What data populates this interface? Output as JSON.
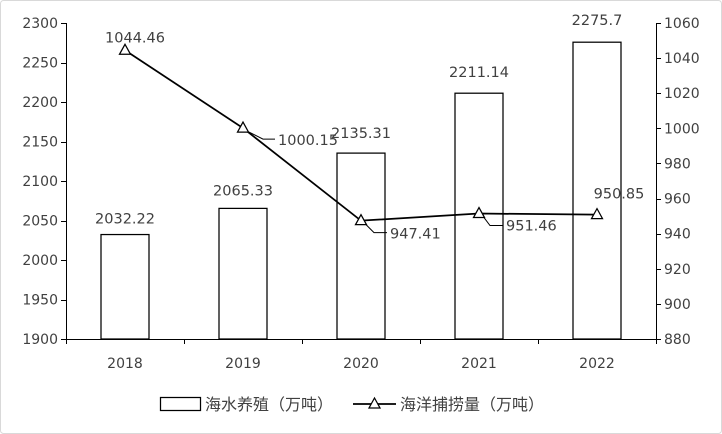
{
  "chart_data": {
    "type": "bar",
    "categories": [
      "2018",
      "2019",
      "2020",
      "2021",
      "2022"
    ],
    "series": [
      {
        "name": "海水养殖（万吨）",
        "type": "bar",
        "axis": "left",
        "values": [
          2032.22,
          2065.33,
          2135.31,
          2211.14,
          2275.7
        ],
        "fill": "#ffffff",
        "stroke": "#000000"
      },
      {
        "name": "海洋捕捞量（万吨）",
        "type": "line",
        "axis": "right",
        "marker": "open-triangle",
        "values": [
          1044.46,
          1000.15,
          947.41,
          951.46,
          950.85
        ],
        "stroke": "#000000"
      }
    ],
    "ylim": [
      1900,
      2300
    ],
    "yticks": [
      1900,
      1950,
      2000,
      2050,
      2100,
      2150,
      2200,
      2250,
      2300
    ],
    "y2lim": [
      880,
      1060
    ],
    "y2ticks": [
      880,
      900,
      920,
      940,
      960,
      980,
      1000,
      1020,
      1040,
      1060
    ],
    "data_labels": true,
    "grid": false,
    "legend": "bottom",
    "text_color": "#404040",
    "axis_color": "#000000",
    "border_color": "#d9d9d9"
  }
}
